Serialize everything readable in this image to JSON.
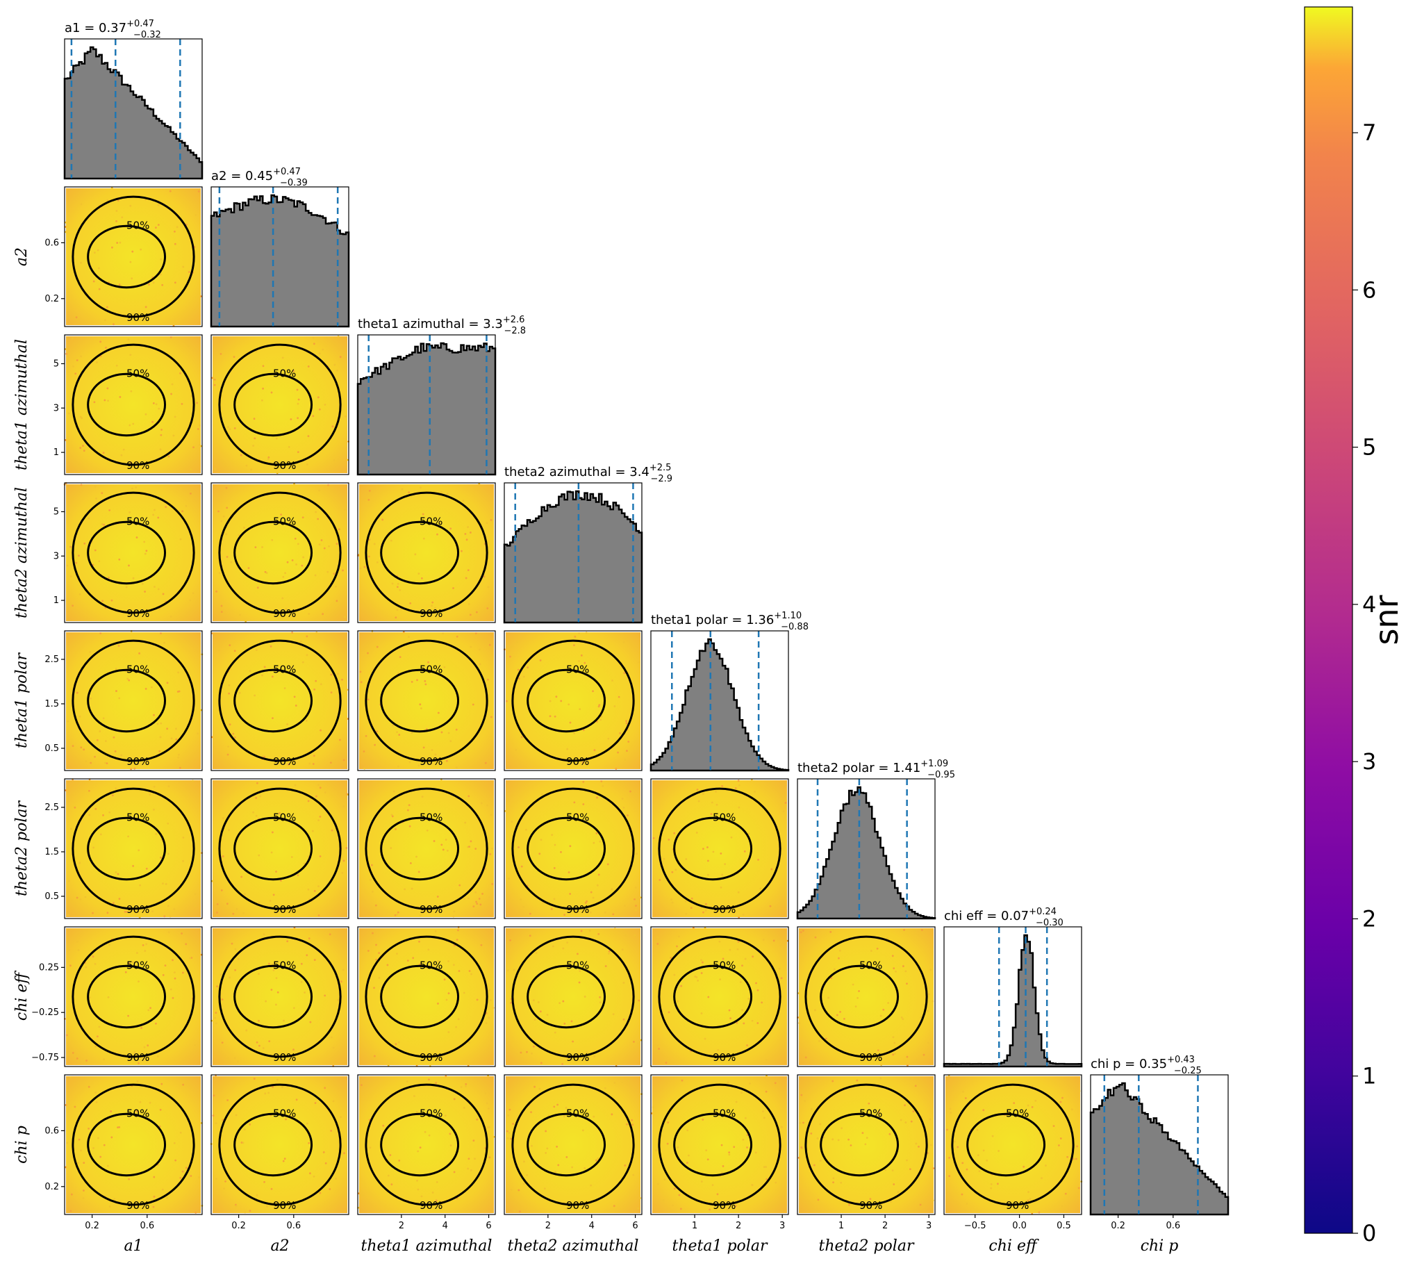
{
  "chart_data": {
    "type": "corner",
    "parameters": [
      {
        "key": "a1",
        "label": "a1",
        "title": "0.37",
        "plus": "+0.47",
        "minus": "−0.32",
        "range": [
          0,
          1
        ],
        "ticks": [
          0.2,
          0.6
        ],
        "tick_labels": [
          "0.2",
          "0.6"
        ],
        "quantiles": [
          0.05,
          0.37,
          0.84
        ],
        "hist_shape": "rising-then-falling-skew-right"
      },
      {
        "key": "a2",
        "label": "a2",
        "title": "0.45",
        "plus": "+0.47",
        "minus": "−0.39",
        "range": [
          0,
          1
        ],
        "ticks": [
          0.2,
          0.6
        ],
        "tick_labels": [
          "0.2",
          "0.6"
        ],
        "quantiles": [
          0.06,
          0.45,
          0.92
        ],
        "hist_shape": "flat-slight-decline"
      },
      {
        "key": "theta1_az",
        "label": "theta1 azimuthal",
        "title": "3.3",
        "plus": "+2.6",
        "minus": "−2.8",
        "range": [
          0,
          6.3
        ],
        "ticks": [
          1,
          3,
          5
        ],
        "tick_labels": [
          "1",
          "3",
          "5"
        ],
        "xticks": [
          2,
          4,
          6
        ],
        "xtick_labels": [
          "2",
          "4",
          "6"
        ],
        "quantiles": [
          0.5,
          3.3,
          5.9
        ],
        "hist_shape": "flat-rising"
      },
      {
        "key": "theta2_az",
        "label": "theta2 azimuthal",
        "title": "3.4",
        "plus": "+2.5",
        "minus": "−2.9",
        "range": [
          0,
          6.3
        ],
        "ticks": [
          1,
          3,
          5
        ],
        "tick_labels": [
          "1",
          "3",
          "5"
        ],
        "xticks": [
          2,
          4,
          6
        ],
        "xtick_labels": [
          "2",
          "4",
          "6"
        ],
        "quantiles": [
          0.5,
          3.4,
          5.9
        ],
        "hist_shape": "rising-then-falling"
      },
      {
        "key": "theta1_pol",
        "label": "theta1 polar",
        "title": "1.36",
        "plus": "+1.10",
        "minus": "−0.88",
        "range": [
          0,
          3.14
        ],
        "ticks": [
          0.5,
          1.5,
          2.5
        ],
        "tick_labels": [
          "0.5",
          "1.5",
          "2.5"
        ],
        "xticks": [
          1,
          2,
          3
        ],
        "xtick_labels": [
          "1",
          "2",
          "3"
        ],
        "quantiles": [
          0.48,
          1.36,
          2.46
        ],
        "hist_shape": "peaked"
      },
      {
        "key": "theta2_pol",
        "label": "theta2 polar",
        "title": "1.41",
        "plus": "+1.09",
        "minus": "−0.95",
        "range": [
          0,
          3.14
        ],
        "ticks": [
          0.5,
          1.5,
          2.5
        ],
        "tick_labels": [
          "0.5",
          "1.5",
          "2.5"
        ],
        "xticks": [
          1,
          2,
          3
        ],
        "xtick_labels": [
          "1",
          "2",
          "3"
        ],
        "quantiles": [
          0.46,
          1.41,
          2.5
        ],
        "hist_shape": "peaked"
      },
      {
        "key": "chi_eff",
        "label": "chi eff",
        "title": "0.07",
        "plus": "+0.24",
        "minus": "−0.30",
        "range": [
          -0.85,
          0.7
        ],
        "ticks": [
          -0.75,
          -0.25,
          0.25
        ],
        "tick_labels": [
          "−0.75",
          "−0.25",
          "0.25"
        ],
        "xticks": [
          -0.5,
          0.0,
          0.5
        ],
        "xtick_labels": [
          "−0.5",
          "0.0",
          "0.5"
        ],
        "quantiles": [
          -0.23,
          0.07,
          0.31
        ],
        "hist_shape": "narrow-peak"
      },
      {
        "key": "chi_p",
        "label": "chi p",
        "title": "0.35",
        "plus": "+0.43",
        "minus": "−0.25",
        "range": [
          0,
          1
        ],
        "ticks": [
          0.2,
          0.6
        ],
        "tick_labels": [
          "0.2",
          "0.6"
        ],
        "quantiles": [
          0.1,
          0.35,
          0.78
        ],
        "hist_shape": "rising-then-falling-skew-right"
      }
    ],
    "contour_labels": [
      "50%",
      "90%"
    ],
    "colorbar": {
      "label": "snr",
      "min": 0,
      "max": 7.8,
      "ticks": [
        0,
        1,
        2,
        3,
        4,
        5,
        6,
        7
      ],
      "tick_labels": [
        "0",
        "1",
        "2",
        "3",
        "4",
        "5",
        "6",
        "7"
      ],
      "colormap": "plasma"
    },
    "scatter_color": "#f2d428",
    "hist_color": "#808080",
    "quantile_color": "#1f77b4"
  }
}
